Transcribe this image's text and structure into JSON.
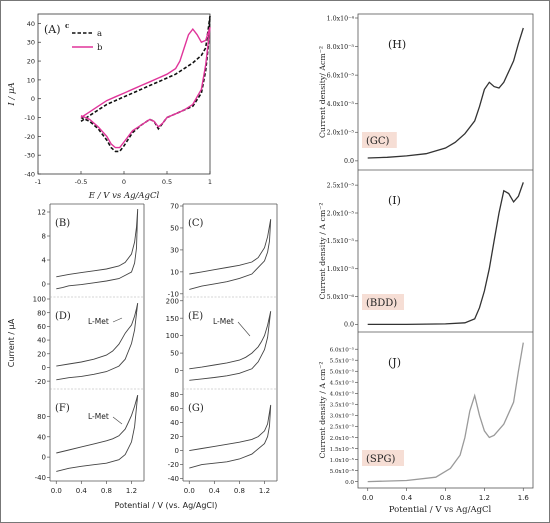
{
  "chart_data": [
    {
      "id": "A",
      "type": "line",
      "panel_label": "(A)",
      "panel_tag": "c",
      "xlabel": "E / V vs Ag/AgCl",
      "ylabel": "I / μA",
      "xlim": [
        -1,
        1
      ],
      "ylim": [
        -40,
        45
      ],
      "xticks": [
        "-1",
        "-0.5",
        "0",
        "0.5",
        "1"
      ],
      "xtick_values": [
        -1,
        -0.5,
        0,
        0.5,
        1
      ],
      "yticks": [
        "-40",
        "-30",
        "-20",
        "-10",
        "0",
        "10",
        "20",
        "30",
        "40"
      ],
      "ytick_values": [
        -40,
        -30,
        -20,
        -10,
        0,
        10,
        20,
        30,
        40
      ],
      "legend": [
        "a",
        "b"
      ],
      "series": [
        {
          "name": "a",
          "color": "#111111",
          "dash": true,
          "x": [
            -0.5,
            -0.4,
            -0.3,
            -0.2,
            -0.1,
            0.0,
            0.1,
            0.2,
            0.3,
            0.4,
            0.5,
            0.6,
            0.7,
            0.8,
            0.9,
            0.95,
            1.0,
            0.98,
            0.95,
            0.9,
            0.8,
            0.7,
            0.6,
            0.5,
            0.45,
            0.4,
            0.35,
            0.3,
            0.2,
            0.1,
            0.0,
            -0.05,
            -0.1,
            -0.15,
            -0.2,
            -0.3,
            -0.4,
            -0.5
          ],
          "y": [
            -12,
            -9,
            -6,
            -3,
            -1,
            1,
            3,
            5,
            7,
            9,
            11,
            13,
            16,
            19,
            23,
            27,
            44,
            28,
            15,
            3,
            -4,
            -6,
            -8,
            -10,
            -13,
            -16,
            -12,
            -11,
            -14,
            -18,
            -25,
            -28,
            -28,
            -26,
            -22,
            -16,
            -12,
            -10
          ]
        },
        {
          "name": "b",
          "color": "#e0359a",
          "dash": false,
          "x": [
            -0.5,
            -0.4,
            -0.3,
            -0.2,
            -0.1,
            0.0,
            0.1,
            0.2,
            0.3,
            0.4,
            0.5,
            0.6,
            0.65,
            0.7,
            0.75,
            0.8,
            0.85,
            0.9,
            0.95,
            1.0,
            0.98,
            0.95,
            0.9,
            0.8,
            0.7,
            0.6,
            0.5,
            0.45,
            0.4,
            0.35,
            0.3,
            0.2,
            0.1,
            0.0,
            -0.05,
            -0.1,
            -0.15,
            -0.2,
            -0.3,
            -0.4,
            -0.5
          ],
          "y": [
            -10,
            -7,
            -4,
            -1,
            1,
            3,
            5,
            7,
            9,
            11,
            13,
            16,
            20,
            27,
            34,
            37,
            34,
            30,
            31,
            38,
            30,
            18,
            5,
            -3,
            -6,
            -8,
            -10,
            -13,
            -15,
            -12,
            -11,
            -14,
            -17,
            -23,
            -26,
            -26,
            -24,
            -20,
            -15,
            -11,
            -9
          ]
        }
      ]
    },
    {
      "id": "B-G",
      "type": "line",
      "ylabel": "Current / μA",
      "xlabel": "Potential / V (vs. Ag/AgCl)",
      "xticks": [
        "0.0",
        "0.4",
        "0.8",
        "1.2"
      ],
      "xtick_values": [
        0,
        0.4,
        0.8,
        1.2
      ],
      "xlim": [
        -0.1,
        1.4
      ],
      "left_axis": [
        {
          "rows": [
            "B"
          ],
          "ylim": [
            -2,
            13
          ],
          "yticks": [
            "0",
            "4",
            "8",
            "12"
          ],
          "ytick_values": [
            0,
            4,
            8,
            12
          ]
        },
        {
          "rows": [
            "D"
          ],
          "ylim": [
            -30,
            100
          ],
          "yticks": [
            "-20",
            "0",
            "20",
            "40",
            "60",
            "80",
            "100"
          ],
          "ytick_values": [
            -20,
            0,
            20,
            40,
            60,
            80,
            100
          ]
        },
        {
          "rows": [
            "F"
          ],
          "ylim": [
            -45,
            130
          ],
          "yticks": [
            "-40",
            "0",
            "40",
            "80"
          ],
          "ytick_values": [
            -40,
            0,
            40,
            80
          ]
        }
      ],
      "right_axis": [
        {
          "rows": [
            "C"
          ],
          "ylim": [
            -12,
            70
          ],
          "yticks": [
            "-10",
            "10",
            "30",
            "50",
            "70"
          ],
          "ytick_values": [
            -10,
            10,
            30,
            50,
            70
          ]
        },
        {
          "rows": [
            "E"
          ],
          "ylim": [
            -50,
            205
          ],
          "yticks": [
            "0",
            "50",
            "100",
            "150",
            "200"
          ],
          "ytick_values": [
            0,
            50,
            100,
            150,
            200
          ]
        },
        {
          "rows": [
            "G"
          ],
          "ylim": [
            -42,
            85
          ],
          "yticks": [
            "-40",
            "-20",
            "0",
            "20",
            "40",
            "60",
            "80"
          ],
          "ytick_values": [
            -40,
            -20,
            0,
            20,
            40,
            60,
            80
          ]
        }
      ],
      "panels": [
        {
          "label": "(B)",
          "annotation": "",
          "x": [
            0.0,
            0.2,
            0.4,
            0.6,
            0.8,
            1.0,
            1.1,
            1.2,
            1.25,
            1.28,
            1.3,
            1.28,
            1.25,
            1.2,
            1.0,
            0.8,
            0.6,
            0.4,
            0.2,
            0.1,
            0.0
          ],
          "y": [
            1.2,
            1.6,
            1.9,
            2.2,
            2.5,
            3.0,
            3.6,
            5.0,
            7.0,
            9.5,
            12.5,
            6.0,
            3.5,
            2.0,
            0.9,
            0.5,
            0.2,
            -0.1,
            -0.3,
            -0.6,
            -0.8
          ]
        },
        {
          "label": "(C)",
          "annotation": "",
          "x": [
            0.0,
            0.2,
            0.4,
            0.6,
            0.8,
            1.0,
            1.1,
            1.2,
            1.25,
            1.3,
            1.28,
            1.25,
            1.2,
            1.0,
            0.8,
            0.6,
            0.4,
            0.2,
            0.0
          ],
          "y": [
            8,
            10,
            12,
            14,
            16,
            19,
            23,
            32,
            42,
            58,
            38,
            28,
            20,
            8,
            4,
            1,
            -1,
            -3,
            -6
          ]
        },
        {
          "label": "(D)",
          "annotation": "L-Met",
          "x": [
            0.0,
            0.2,
            0.4,
            0.6,
            0.8,
            0.9,
            1.0,
            1.05,
            1.1,
            1.15,
            1.2,
            1.25,
            1.28,
            1.3,
            1.25,
            1.2,
            1.1,
            1.0,
            0.8,
            0.6,
            0.4,
            0.2,
            0.0
          ],
          "y": [
            2,
            5,
            8,
            12,
            18,
            24,
            34,
            42,
            50,
            56,
            62,
            75,
            86,
            94,
            55,
            35,
            12,
            2,
            -6,
            -10,
            -13,
            -15,
            -18
          ]
        },
        {
          "label": "(E)",
          "annotation": "L-Met",
          "x": [
            0.0,
            0.2,
            0.4,
            0.6,
            0.8,
            0.9,
            1.0,
            1.1,
            1.15,
            1.2,
            1.25,
            1.3,
            1.25,
            1.2,
            1.1,
            1.0,
            0.8,
            0.6,
            0.4,
            0.2,
            0.0
          ],
          "y": [
            5,
            10,
            16,
            22,
            30,
            38,
            50,
            68,
            82,
            100,
            130,
            170,
            95,
            60,
            25,
            5,
            -8,
            -15,
            -20,
            -24,
            -28
          ]
        },
        {
          "label": "(F)",
          "annotation": "L-Met",
          "x": [
            0.0,
            0.2,
            0.4,
            0.6,
            0.8,
            0.9,
            1.0,
            1.1,
            1.15,
            1.2,
            1.25,
            1.3,
            1.25,
            1.2,
            1.1,
            1.0,
            0.8,
            0.6,
            0.4,
            0.2,
            0.0
          ],
          "y": [
            8,
            14,
            20,
            26,
            32,
            36,
            42,
            55,
            68,
            82,
            100,
            122,
            60,
            30,
            5,
            -5,
            -12,
            -15,
            -18,
            -22,
            -28
          ]
        },
        {
          "label": "(G)",
          "annotation": "",
          "x": [
            0.0,
            0.2,
            0.4,
            0.6,
            0.8,
            1.0,
            1.1,
            1.2,
            1.25,
            1.3,
            1.28,
            1.25,
            1.2,
            1.0,
            0.8,
            0.6,
            0.4,
            0.2,
            0.0
          ],
          "y": [
            0,
            3,
            6,
            9,
            12,
            16,
            20,
            28,
            38,
            65,
            35,
            20,
            10,
            -5,
            -12,
            -16,
            -18,
            -20,
            -25
          ]
        }
      ]
    },
    {
      "id": "H-J",
      "type": "line",
      "xlabel": "Potential / V vs Ag/AgCl",
      "xlim": [
        -0.1,
        1.7
      ],
      "xticks": [
        "0.0",
        "0.4",
        "0.8",
        "1.2",
        "1.6"
      ],
      "xtick_values": [
        0,
        0.4,
        0.8,
        1.2,
        1.6
      ],
      "panels": [
        {
          "label": "(H)",
          "tag": "(GC)",
          "ylabel": "Current  density/ Acm⁻²",
          "ylim": [
            -0.05,
            1.0
          ],
          "yticks": [
            "0.0",
            "2.0x10⁻⁵",
            "4.0x10⁻⁵",
            "6.0x10⁻⁵",
            "8.0x10⁻⁵",
            "1.0x10⁻⁴"
          ],
          "ytick_values": [
            0,
            0.2,
            0.4,
            0.6,
            0.8,
            1.0
          ],
          "color": "#333333",
          "x": [
            0.0,
            0.2,
            0.4,
            0.6,
            0.8,
            0.9,
            1.0,
            1.1,
            1.15,
            1.2,
            1.25,
            1.3,
            1.35,
            1.4,
            1.5,
            1.55,
            1.6
          ],
          "y": [
            0.02,
            0.025,
            0.035,
            0.05,
            0.09,
            0.13,
            0.19,
            0.28,
            0.38,
            0.5,
            0.55,
            0.52,
            0.51,
            0.55,
            0.7,
            0.82,
            0.93
          ]
        },
        {
          "label": "(I)",
          "tag": "(BDD)",
          "ylabel": "Current density / A cm⁻²",
          "ylim": [
            -0.1,
            2.7
          ],
          "yticks": [
            "0.0",
            "5.0x10⁻⁶",
            "1.0x10⁻⁵",
            "1.5x10⁻⁵",
            "2.0x10⁻⁵",
            "2.5x10⁻⁵"
          ],
          "ytick_values": [
            0,
            0.5,
            1.0,
            1.5,
            2.0,
            2.5
          ],
          "color": "#333333",
          "x": [
            0.0,
            0.4,
            0.8,
            1.0,
            1.1,
            1.15,
            1.2,
            1.25,
            1.3,
            1.35,
            1.4,
            1.45,
            1.5,
            1.55,
            1.6
          ],
          "y": [
            0.0,
            0.0,
            0.01,
            0.03,
            0.1,
            0.3,
            0.6,
            1.0,
            1.5,
            2.0,
            2.4,
            2.35,
            2.2,
            2.3,
            2.55
          ]
        },
        {
          "label": "(J)",
          "tag": "(SPG)",
          "ylabel": "Current density / A cm⁻²",
          "ylim": [
            -0.2,
            6.6
          ],
          "yticks": [
            "0.0",
            "5.0x10⁻⁶",
            "1.0x10⁻⁵",
            "1.5x10⁻⁵",
            "2.0x10⁻⁵",
            "2.5x10⁻⁵",
            "3.0x10⁻⁵",
            "3.5x10⁻⁵",
            "4.0x10⁻⁵",
            "4.5x10⁻⁵",
            "5.0x10⁻⁵",
            "5.5x10⁻⁵",
            "6.0x10⁻⁵"
          ],
          "ytick_values": [
            0,
            0.5,
            1.0,
            1.5,
            2.0,
            2.5,
            3.0,
            3.5,
            4.0,
            4.5,
            5.0,
            5.5,
            6.0
          ],
          "color": "#9a9a9a",
          "x": [
            0.0,
            0.4,
            0.7,
            0.85,
            0.95,
            1.0,
            1.05,
            1.1,
            1.15,
            1.2,
            1.25,
            1.3,
            1.4,
            1.5,
            1.55,
            1.6
          ],
          "y": [
            0.0,
            0.05,
            0.2,
            0.6,
            1.2,
            2.0,
            3.2,
            3.9,
            3.0,
            2.3,
            2.0,
            2.1,
            2.6,
            3.6,
            5.0,
            6.3
          ]
        }
      ]
    }
  ]
}
